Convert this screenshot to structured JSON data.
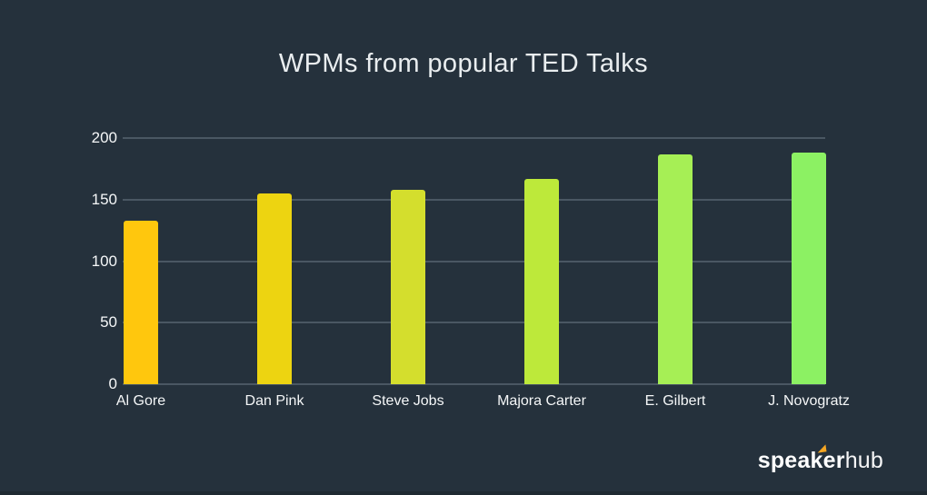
{
  "chart_data": {
    "type": "bar",
    "title": "WPMs from popular TED Talks",
    "categories": [
      "Al Gore",
      "Dan Pink",
      "Steve Jobs",
      "Majora Carter",
      "E. Gilbert",
      "J. Novogratz"
    ],
    "values": [
      133,
      155,
      158,
      167,
      187,
      188
    ],
    "bar_colors": [
      "#FFC70D",
      "#EDD411",
      "#D4DE2D",
      "#BDE93A",
      "#A6EF55",
      "#8CF163"
    ],
    "xlabel": "",
    "ylabel": "",
    "ylim": [
      0,
      200
    ],
    "yticks": [
      0,
      50,
      100,
      150,
      200
    ],
    "grid": "horizontal gridlines at every y tick",
    "legend": "none",
    "background_color": "#25313C",
    "gridline_color": "#4A5763",
    "text_color": "#F5F7F8",
    "title_color": "#E9EDEF"
  },
  "logo": {
    "part_bold_1": "spea",
    "part_k": "k",
    "part_bold_2": "er",
    "part_light": "hub",
    "flag_color": "#F5A623"
  }
}
